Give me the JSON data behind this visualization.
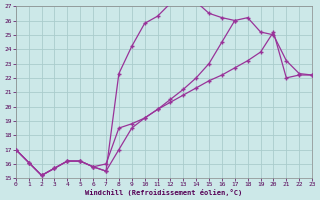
{
  "xlabel": "Windchill (Refroidissement éolien,°C)",
  "bg_color": "#cce8e8",
  "grid_color": "#aacccc",
  "line_color": "#993399",
  "xlim": [
    0,
    23
  ],
  "ylim": [
    15,
    27
  ],
  "xticks": [
    0,
    1,
    2,
    3,
    4,
    5,
    6,
    7,
    8,
    9,
    10,
    11,
    12,
    13,
    14,
    15,
    16,
    17,
    18,
    19,
    20,
    21,
    22,
    23
  ],
  "yticks": [
    15,
    16,
    17,
    18,
    19,
    20,
    21,
    22,
    23,
    24,
    25,
    26,
    27
  ],
  "line1_x": [
    0,
    1,
    2,
    3,
    4,
    5,
    6,
    7,
    8,
    9,
    10,
    11,
    12,
    13,
    14,
    15,
    16,
    17
  ],
  "line1_y": [
    17.0,
    16.1,
    15.2,
    15.7,
    16.2,
    16.2,
    15.8,
    15.5,
    22.3,
    24.2,
    25.8,
    26.3,
    27.2,
    27.5,
    27.3,
    26.5,
    26.2,
    26.0
  ],
  "line2_x": [
    0,
    1,
    2,
    3,
    4,
    5,
    6,
    7,
    8,
    9,
    10,
    11,
    12,
    13,
    14,
    15,
    16,
    17,
    18,
    19,
    20,
    21,
    22,
    23
  ],
  "line2_y": [
    17.0,
    16.1,
    15.2,
    15.7,
    16.2,
    16.2,
    15.8,
    16.0,
    18.5,
    18.8,
    19.2,
    19.8,
    20.5,
    21.2,
    22.0,
    23.0,
    24.5,
    26.0,
    26.2,
    25.2,
    25.0,
    23.2,
    22.3,
    22.2
  ],
  "line3_x": [
    0,
    1,
    2,
    3,
    4,
    5,
    6,
    7,
    8,
    9,
    10,
    11,
    12,
    13,
    14,
    15,
    16,
    17,
    18,
    19,
    20,
    21,
    22,
    23
  ],
  "line3_y": [
    17.0,
    16.1,
    15.2,
    15.7,
    16.2,
    16.2,
    15.8,
    15.5,
    17.0,
    18.5,
    19.2,
    19.8,
    20.3,
    20.8,
    21.3,
    21.8,
    22.2,
    22.7,
    23.2,
    23.8,
    25.2,
    22.0,
    22.2,
    22.2
  ]
}
